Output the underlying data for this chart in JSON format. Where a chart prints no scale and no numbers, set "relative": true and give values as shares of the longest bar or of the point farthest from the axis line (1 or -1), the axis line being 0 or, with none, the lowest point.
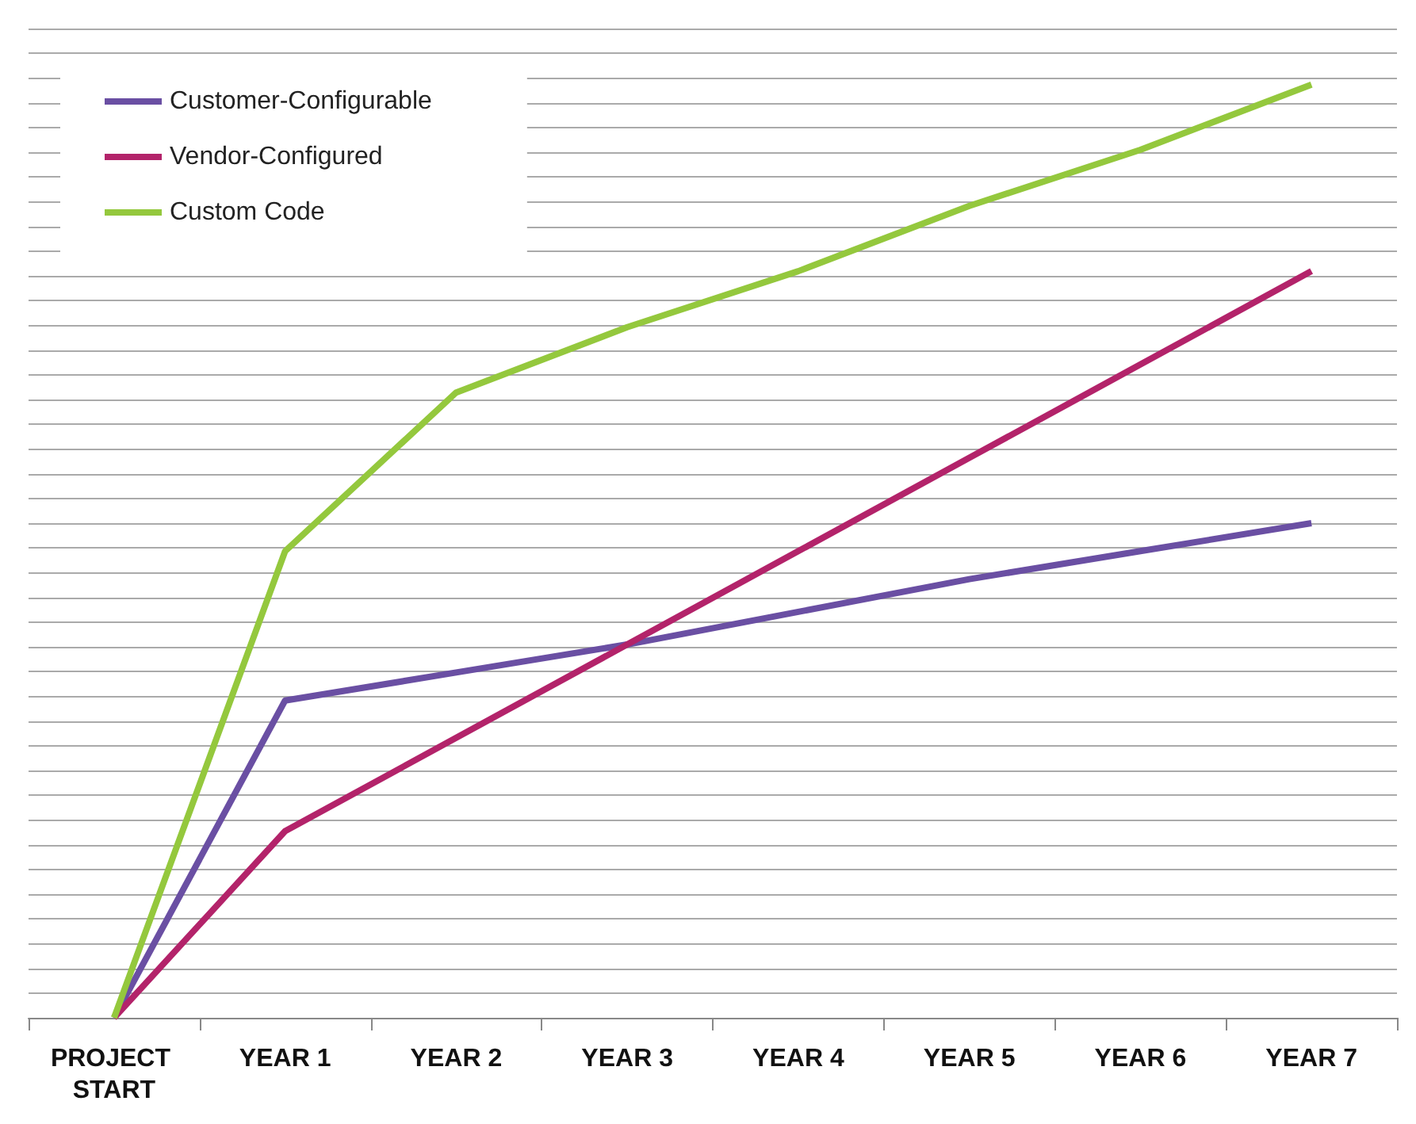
{
  "chart_data": {
    "type": "line",
    "relative": true,
    "categories": [
      "PROJECT START",
      "YEAR 1",
      "YEAR 2",
      "YEAR 3",
      "YEAR 4",
      "YEAR 5",
      "YEAR 6",
      "YEAR 7"
    ],
    "series": [
      {
        "name": "Customer-Configurable",
        "color": "#6a4fa3",
        "values": [
          0,
          0.34,
          0.37,
          0.4,
          0.435,
          0.47,
          0.5,
          0.53
        ]
      },
      {
        "name": "Vendor-Configured",
        "color": "#b3236a",
        "values": [
          0,
          0.2,
          0.3,
          0.4,
          0.5,
          0.6,
          0.7,
          0.8
        ]
      },
      {
        "name": "Custom Code",
        "color": "#94c83d",
        "values": [
          0,
          0.5,
          0.67,
          0.74,
          0.8,
          0.87,
          0.93,
          1
        ]
      }
    ],
    "grid": "y",
    "legend": "top left",
    "marker": "none",
    "line_style": "solid"
  }
}
